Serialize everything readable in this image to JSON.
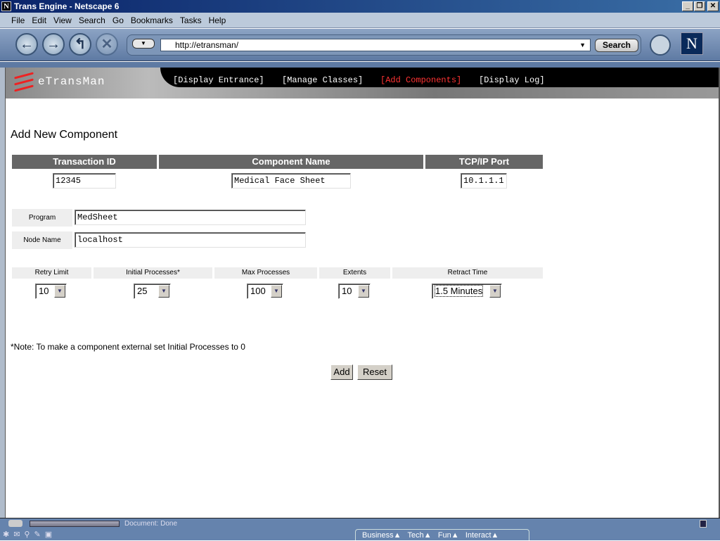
{
  "window": {
    "title": "Trans Engine - Netscape 6",
    "min": "_",
    "max": "❐",
    "close": "✕"
  },
  "menu": [
    "File",
    "Edit",
    "View",
    "Search",
    "Go",
    "Bookmarks",
    "Tasks",
    "Help"
  ],
  "toolbar": {
    "url": "http://etransman/",
    "search_label": "Search"
  },
  "site": {
    "logo": "eTransMan",
    "nav": [
      "[Display Entrance]",
      "[Manage Classes]",
      "[Add Components]",
      "[Display Log]"
    ],
    "active_color": "#ff3333"
  },
  "page": {
    "title": "Add New Component",
    "headers": [
      "Transaction ID",
      "Component Name",
      "TCP/IP Port"
    ],
    "values": [
      "12345",
      "Medical Face Sheet",
      "10.1.1.1"
    ],
    "program_label": "Program",
    "program_value": "MedSheet",
    "node_label": "Node Name",
    "node_value": "localhost",
    "options": [
      {
        "label": "Retry Limit",
        "value": "10"
      },
      {
        "label": "Initial Processes*",
        "value": "25"
      },
      {
        "label": "Max Processes",
        "value": "100"
      },
      {
        "label": "Extents",
        "value": "10"
      },
      {
        "label": "Retract Time",
        "value": "1.5 Minutes"
      }
    ],
    "note": "*Note: To make a component external set Initial Processes to 0",
    "add_label": "Add",
    "reset_label": "Reset"
  },
  "status": {
    "text": "Document: Done"
  },
  "taskbar": {
    "tabs": [
      "Business",
      "Tech",
      "Fun",
      "Interact"
    ]
  }
}
